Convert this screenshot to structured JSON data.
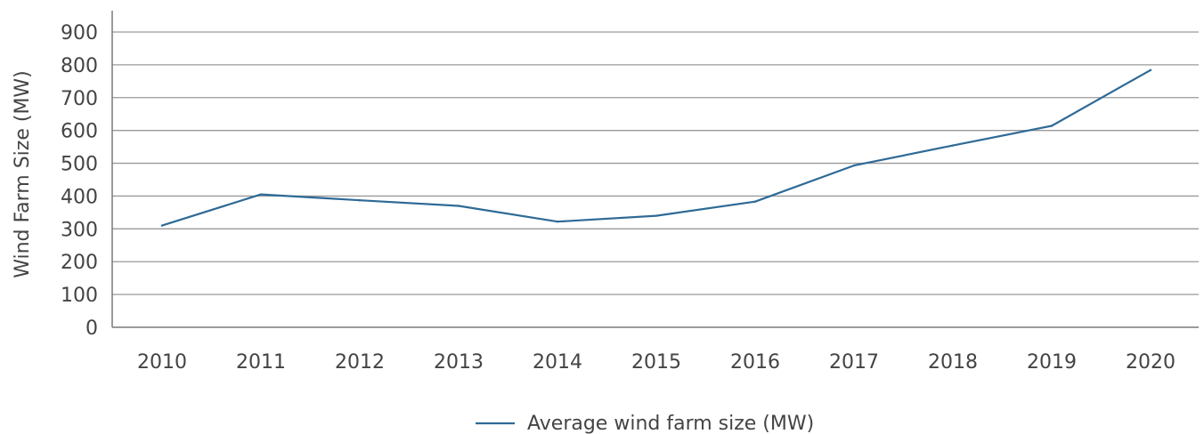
{
  "chart_data": {
    "type": "line",
    "title": "",
    "xlabel": "",
    "ylabel": "Wind Farm Size (MW)",
    "x": [
      "2010",
      "2011",
      "2012",
      "2013",
      "2014",
      "2015",
      "2016",
      "2017",
      "2018",
      "2019",
      "2020"
    ],
    "ylim": [
      0,
      900
    ],
    "yticks": [
      "0",
      "100",
      "200",
      "300",
      "400",
      "500",
      "600",
      "700",
      "800",
      "900"
    ],
    "grid": true,
    "legend_position": "bottom-center",
    "series": [
      {
        "name": "Average wind farm size (MW)",
        "color": "#2e6a96",
        "values": [
          310,
          405,
          387,
          370,
          322,
          340,
          383,
          493,
          554,
          614,
          784
        ]
      }
    ]
  }
}
